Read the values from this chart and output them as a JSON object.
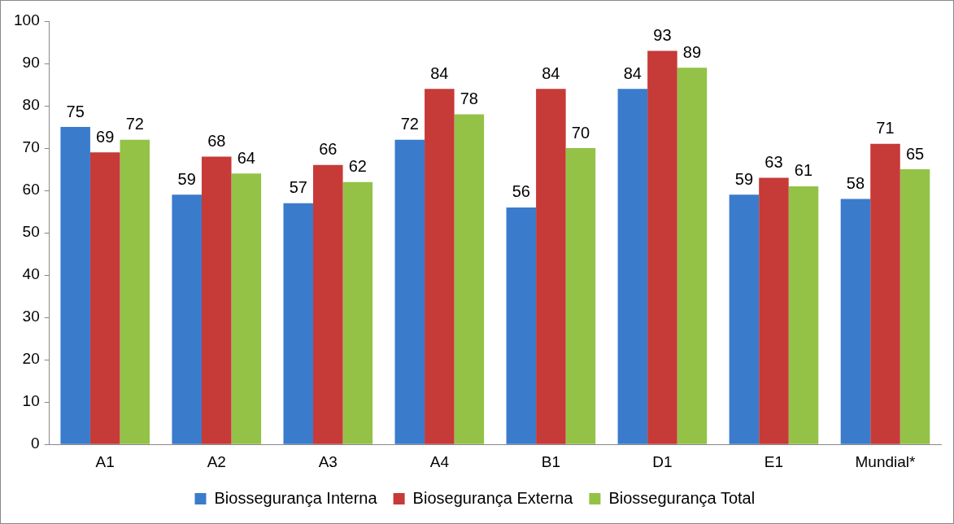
{
  "chart_data": {
    "type": "bar",
    "categories": [
      "A1",
      "A2",
      "A3",
      "A4",
      "B1",
      "D1",
      "E1",
      "Mundial*"
    ],
    "series": [
      {
        "name": "Biossegurança Interna",
        "color": "#3b7bcc",
        "values": [
          75,
          59,
          57,
          72,
          56,
          84,
          59,
          58
        ]
      },
      {
        "name": "Biosegurança Externa",
        "color": "#c63a38",
        "values": [
          69,
          68,
          66,
          84,
          84,
          93,
          63,
          71
        ]
      },
      {
        "name": "Biossegurança Total",
        "color": "#93c247",
        "values": [
          72,
          64,
          62,
          78,
          70,
          89,
          61,
          65
        ]
      }
    ],
    "ylim": [
      0,
      100
    ],
    "yticks": [
      0,
      10,
      20,
      30,
      40,
      50,
      60,
      70,
      80,
      90,
      100
    ],
    "grid": false,
    "legend": "bottom",
    "data_labels": true
  }
}
